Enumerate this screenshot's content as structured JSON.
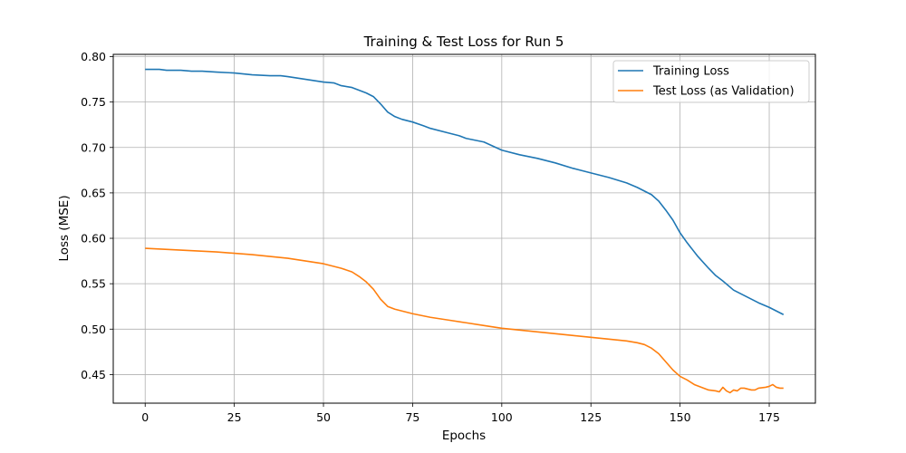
{
  "chart_data": {
    "type": "line",
    "title": "Training & Test Loss for Run 5",
    "xlabel": "Epochs",
    "ylabel": "Loss (MSE)",
    "xlim": [
      -8.95,
      187.95
    ],
    "ylim": [
      0.4185,
      0.8025
    ],
    "xticks": [
      0,
      25,
      50,
      75,
      100,
      125,
      150,
      175
    ],
    "yticks": [
      0.45,
      0.5,
      0.55,
      0.6,
      0.65,
      0.7,
      0.75,
      0.8
    ],
    "grid": true,
    "legend_position": "top-right",
    "series": [
      {
        "name": "Training Loss",
        "color": "#1f77b4",
        "points": [
          [
            0,
            0.786
          ],
          [
            2,
            0.786
          ],
          [
            4,
            0.786
          ],
          [
            6,
            0.785
          ],
          [
            8,
            0.785
          ],
          [
            10,
            0.785
          ],
          [
            13,
            0.784
          ],
          [
            16,
            0.784
          ],
          [
            20,
            0.783
          ],
          [
            25,
            0.782
          ],
          [
            30,
            0.78
          ],
          [
            35,
            0.779
          ],
          [
            38,
            0.779
          ],
          [
            40,
            0.778
          ],
          [
            45,
            0.775
          ],
          [
            50,
            0.772
          ],
          [
            53,
            0.771
          ],
          [
            55,
            0.768
          ],
          [
            58,
            0.766
          ],
          [
            60,
            0.763
          ],
          [
            62,
            0.76
          ],
          [
            64,
            0.756
          ],
          [
            66,
            0.748
          ],
          [
            68,
            0.739
          ],
          [
            70,
            0.734
          ],
          [
            72,
            0.731
          ],
          [
            75,
            0.728
          ],
          [
            78,
            0.724
          ],
          [
            80,
            0.721
          ],
          [
            85,
            0.716
          ],
          [
            88,
            0.713
          ],
          [
            90,
            0.71
          ],
          [
            95,
            0.706
          ],
          [
            100,
            0.697
          ],
          [
            105,
            0.692
          ],
          [
            110,
            0.688
          ],
          [
            115,
            0.683
          ],
          [
            120,
            0.677
          ],
          [
            125,
            0.672
          ],
          [
            130,
            0.667
          ],
          [
            135,
            0.661
          ],
          [
            138,
            0.656
          ],
          [
            140,
            0.652
          ],
          [
            142,
            0.648
          ],
          [
            144,
            0.641
          ],
          [
            146,
            0.631
          ],
          [
            148,
            0.62
          ],
          [
            150,
            0.606
          ],
          [
            152,
            0.595
          ],
          [
            155,
            0.58
          ],
          [
            158,
            0.567
          ],
          [
            160,
            0.559
          ],
          [
            162,
            0.553
          ],
          [
            165,
            0.543
          ],
          [
            168,
            0.537
          ],
          [
            170,
            0.533
          ],
          [
            172,
            0.529
          ],
          [
            175,
            0.524
          ],
          [
            178,
            0.518
          ],
          [
            179,
            0.516
          ]
        ]
      },
      {
        "name": "Test Loss (as Validation)",
        "color": "#ff7f0e",
        "points": [
          [
            0,
            0.589
          ],
          [
            10,
            0.587
          ],
          [
            20,
            0.585
          ],
          [
            30,
            0.582
          ],
          [
            40,
            0.578
          ],
          [
            50,
            0.572
          ],
          [
            55,
            0.567
          ],
          [
            58,
            0.563
          ],
          [
            60,
            0.558
          ],
          [
            62,
            0.552
          ],
          [
            64,
            0.544
          ],
          [
            66,
            0.533
          ],
          [
            68,
            0.525
          ],
          [
            70,
            0.522
          ],
          [
            75,
            0.517
          ],
          [
            80,
            0.513
          ],
          [
            85,
            0.51
          ],
          [
            90,
            0.507
          ],
          [
            95,
            0.504
          ],
          [
            100,
            0.501
          ],
          [
            105,
            0.499
          ],
          [
            110,
            0.497
          ],
          [
            115,
            0.495
          ],
          [
            120,
            0.493
          ],
          [
            125,
            0.491
          ],
          [
            130,
            0.489
          ],
          [
            135,
            0.487
          ],
          [
            138,
            0.485
          ],
          [
            140,
            0.483
          ],
          [
            142,
            0.479
          ],
          [
            144,
            0.473
          ],
          [
            146,
            0.464
          ],
          [
            148,
            0.455
          ],
          [
            150,
            0.448
          ],
          [
            152,
            0.444
          ],
          [
            154,
            0.439
          ],
          [
            156,
            0.436
          ],
          [
            158,
            0.433
          ],
          [
            160,
            0.432
          ],
          [
            161,
            0.431
          ],
          [
            162,
            0.436
          ],
          [
            163,
            0.432
          ],
          [
            164,
            0.43
          ],
          [
            165,
            0.433
          ],
          [
            166,
            0.432
          ],
          [
            167,
            0.435
          ],
          [
            168,
            0.435
          ],
          [
            170,
            0.433
          ],
          [
            171,
            0.433
          ],
          [
            172,
            0.435
          ],
          [
            174,
            0.436
          ],
          [
            175,
            0.437
          ],
          [
            176,
            0.439
          ],
          [
            177,
            0.436
          ],
          [
            178,
            0.435
          ],
          [
            179,
            0.435
          ]
        ]
      }
    ]
  }
}
